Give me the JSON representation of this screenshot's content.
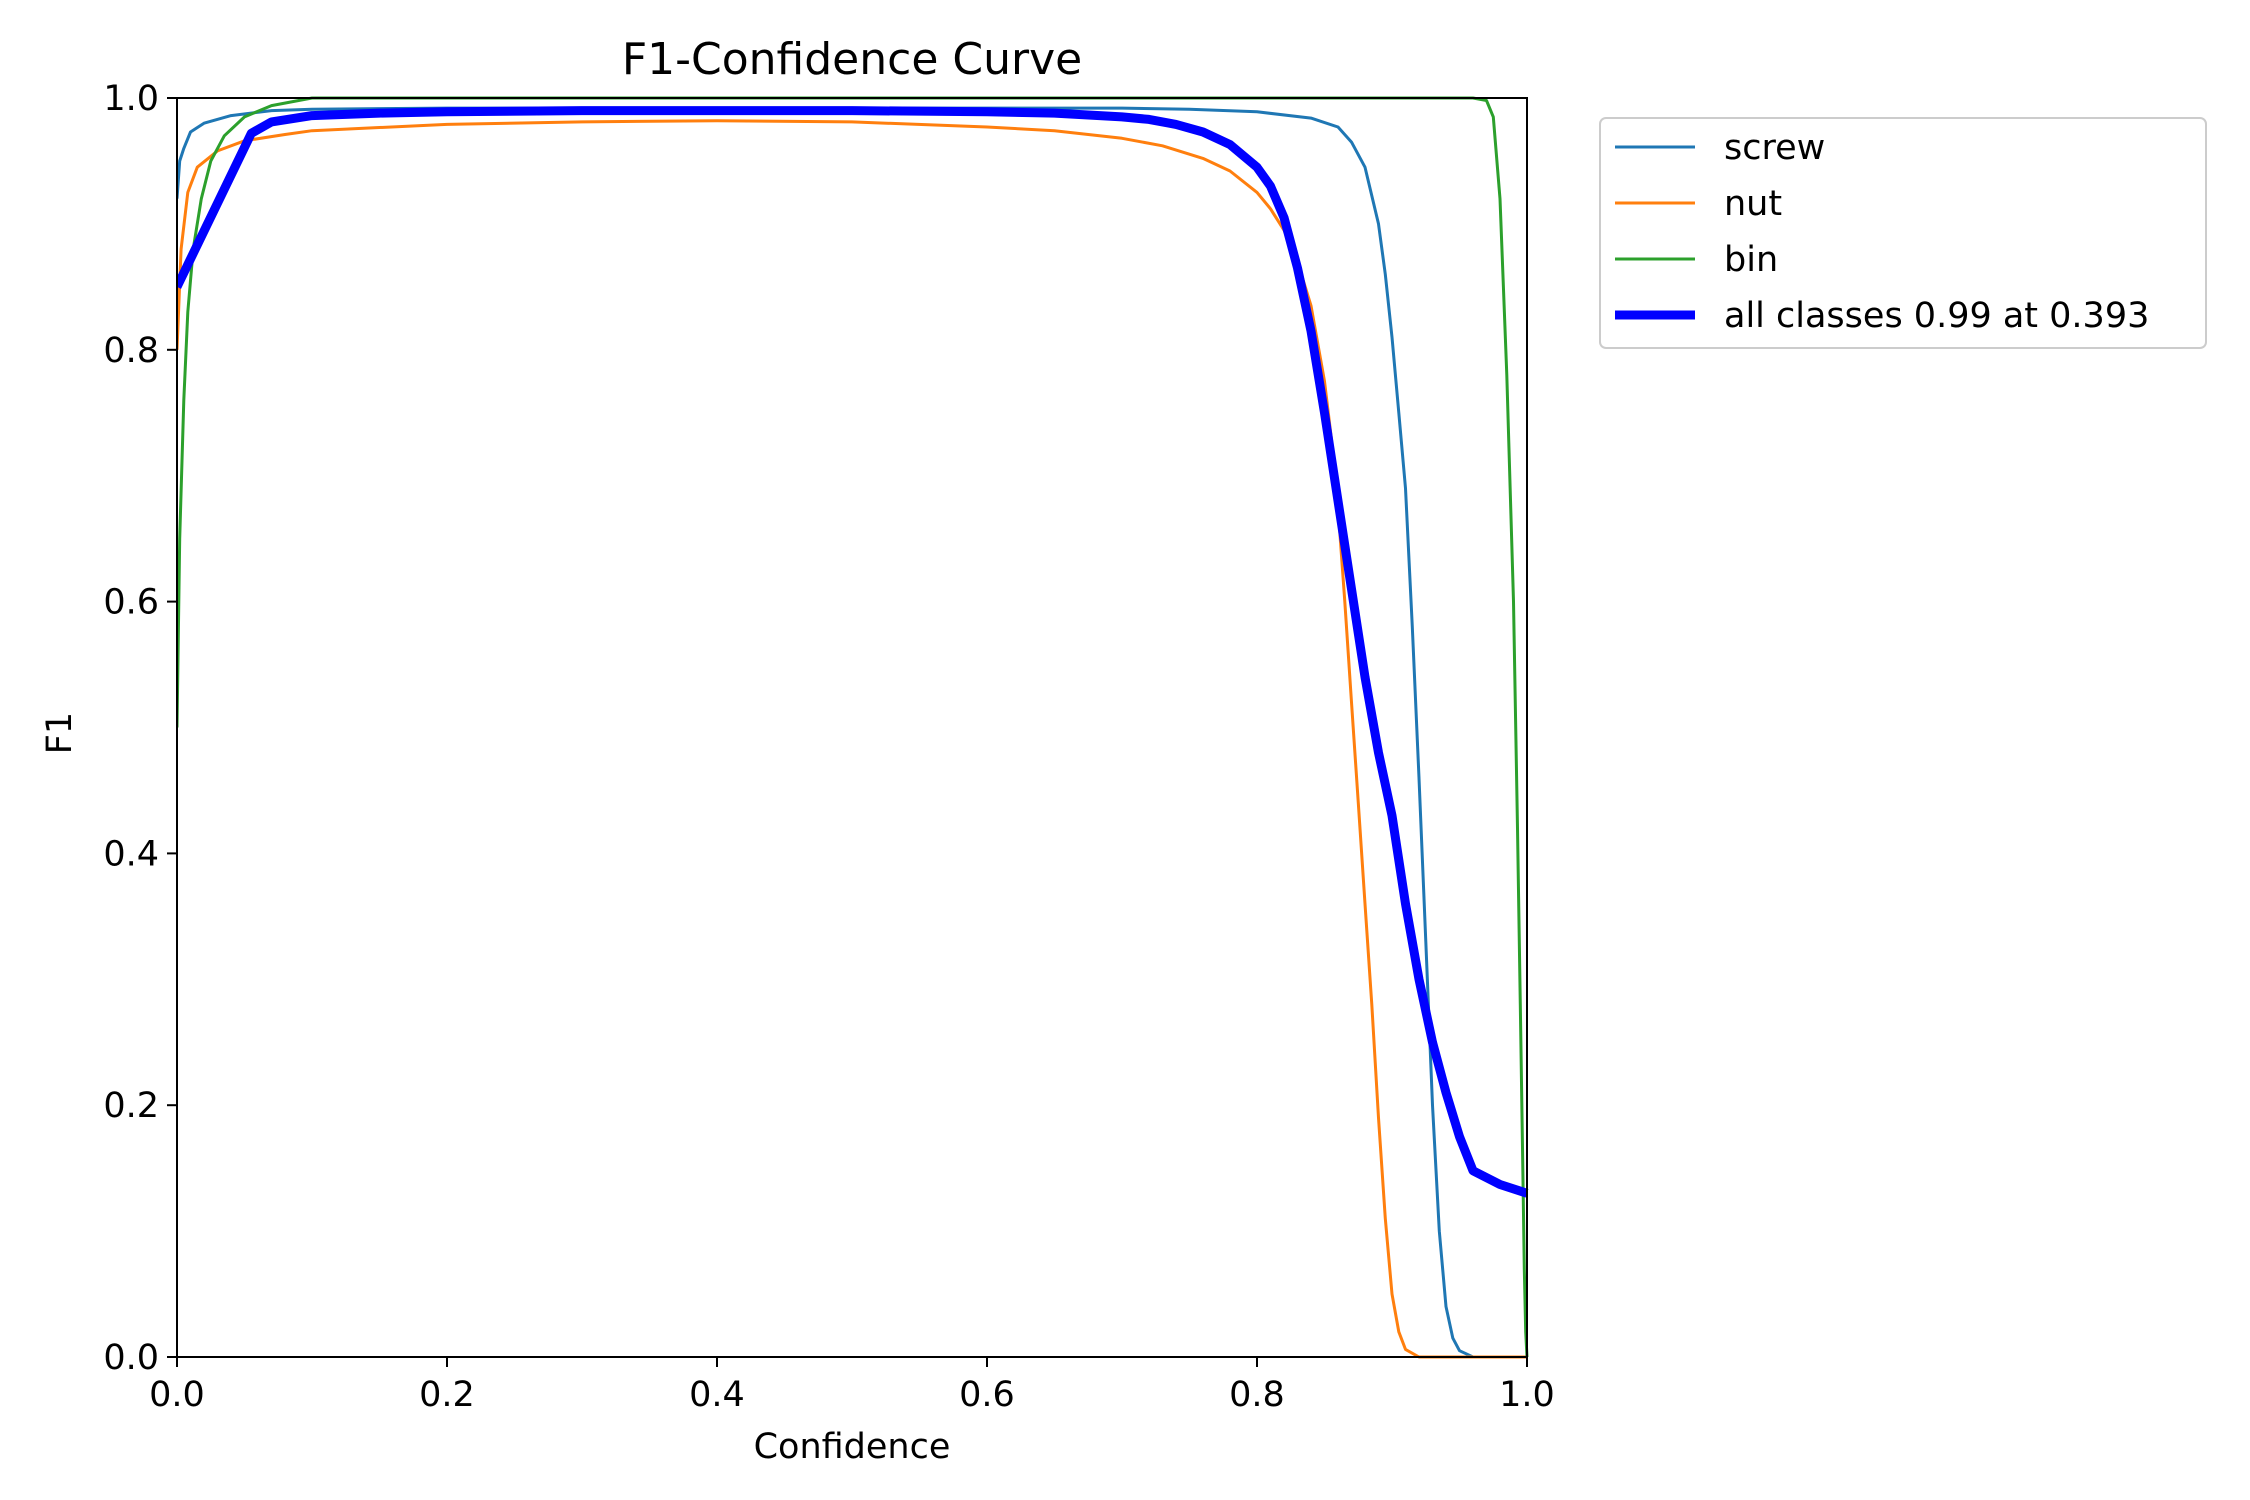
{
  "chart_data": {
    "type": "line",
    "title": "F1-Confidence Curve",
    "xlabel": "Confidence",
    "ylabel": "F1",
    "xlim": [
      0,
      1
    ],
    "ylim": [
      0,
      1
    ],
    "xticks": [
      "0.0",
      "0.2",
      "0.4",
      "0.6",
      "0.8",
      "1.0"
    ],
    "yticks": [
      "0.0",
      "0.2",
      "0.4",
      "0.6",
      "0.8",
      "1.0"
    ],
    "grid": false,
    "legend_position": "outside-top-right",
    "series": [
      {
        "name": "screw",
        "color": "#1f77b4",
        "points": [
          [
            0.0,
            0.92
          ],
          [
            0.002,
            0.95
          ],
          [
            0.005,
            0.96
          ],
          [
            0.01,
            0.973
          ],
          [
            0.02,
            0.98
          ],
          [
            0.04,
            0.986
          ],
          [
            0.07,
            0.99
          ],
          [
            0.1,
            0.991
          ],
          [
            0.2,
            0.992
          ],
          [
            0.3,
            0.992
          ],
          [
            0.4,
            0.992
          ],
          [
            0.5,
            0.992
          ],
          [
            0.6,
            0.992
          ],
          [
            0.7,
            0.992
          ],
          [
            0.75,
            0.991
          ],
          [
            0.8,
            0.989
          ],
          [
            0.84,
            0.984
          ],
          [
            0.86,
            0.977
          ],
          [
            0.87,
            0.965
          ],
          [
            0.88,
            0.945
          ],
          [
            0.89,
            0.9
          ],
          [
            0.895,
            0.86
          ],
          [
            0.9,
            0.81
          ],
          [
            0.905,
            0.75
          ],
          [
            0.91,
            0.69
          ],
          [
            0.915,
            0.58
          ],
          [
            0.92,
            0.46
          ],
          [
            0.925,
            0.33
          ],
          [
            0.93,
            0.2
          ],
          [
            0.935,
            0.1
          ],
          [
            0.94,
            0.04
          ],
          [
            0.945,
            0.015
          ],
          [
            0.95,
            0.005
          ],
          [
            0.96,
            0.0
          ],
          [
            1.0,
            0.0
          ]
        ]
      },
      {
        "name": "nut",
        "color": "#ff7f0e",
        "points": [
          [
            0.0,
            0.8
          ],
          [
            0.003,
            0.88
          ],
          [
            0.008,
            0.925
          ],
          [
            0.015,
            0.945
          ],
          [
            0.03,
            0.958
          ],
          [
            0.05,
            0.966
          ],
          [
            0.08,
            0.971
          ],
          [
            0.1,
            0.974
          ],
          [
            0.2,
            0.979
          ],
          [
            0.3,
            0.981
          ],
          [
            0.4,
            0.982
          ],
          [
            0.5,
            0.981
          ],
          [
            0.6,
            0.977
          ],
          [
            0.65,
            0.974
          ],
          [
            0.7,
            0.968
          ],
          [
            0.73,
            0.962
          ],
          [
            0.76,
            0.952
          ],
          [
            0.78,
            0.942
          ],
          [
            0.8,
            0.925
          ],
          [
            0.81,
            0.912
          ],
          [
            0.82,
            0.895
          ],
          [
            0.83,
            0.87
          ],
          [
            0.84,
            0.835
          ],
          [
            0.85,
            0.775
          ],
          [
            0.855,
            0.73
          ],
          [
            0.86,
            0.675
          ],
          [
            0.865,
            0.6
          ],
          [
            0.87,
            0.52
          ],
          [
            0.875,
            0.44
          ],
          [
            0.88,
            0.36
          ],
          [
            0.885,
            0.28
          ],
          [
            0.89,
            0.19
          ],
          [
            0.895,
            0.11
          ],
          [
            0.9,
            0.05
          ],
          [
            0.905,
            0.02
          ],
          [
            0.91,
            0.006
          ],
          [
            0.92,
            0.0
          ],
          [
            1.0,
            0.0
          ]
        ]
      },
      {
        "name": "bin",
        "color": "#2ca02c",
        "points": [
          [
            0.0,
            0.5
          ],
          [
            0.002,
            0.65
          ],
          [
            0.005,
            0.76
          ],
          [
            0.008,
            0.83
          ],
          [
            0.012,
            0.88
          ],
          [
            0.018,
            0.92
          ],
          [
            0.025,
            0.95
          ],
          [
            0.035,
            0.97
          ],
          [
            0.05,
            0.985
          ],
          [
            0.07,
            0.994
          ],
          [
            0.1,
            1.0
          ],
          [
            0.5,
            1.0
          ],
          [
            0.96,
            1.0
          ],
          [
            0.97,
            0.998
          ],
          [
            0.975,
            0.985
          ],
          [
            0.98,
            0.92
          ],
          [
            0.985,
            0.78
          ],
          [
            0.99,
            0.6
          ],
          [
            0.993,
            0.42
          ],
          [
            0.995,
            0.28
          ],
          [
            0.997,
            0.14
          ],
          [
            0.998,
            0.07
          ],
          [
            0.999,
            0.02
          ],
          [
            1.0,
            0.0
          ]
        ]
      },
      {
        "name": "all classes 0.99 at 0.393",
        "color": "#0000ff",
        "bold": true,
        "points": [
          [
            0.0,
            0.85
          ],
          [
            0.055,
            0.972
          ],
          [
            0.07,
            0.981
          ],
          [
            0.1,
            0.986
          ],
          [
            0.15,
            0.988
          ],
          [
            0.2,
            0.989
          ],
          [
            0.3,
            0.99
          ],
          [
            0.393,
            0.99
          ],
          [
            0.5,
            0.99
          ],
          [
            0.6,
            0.989
          ],
          [
            0.65,
            0.988
          ],
          [
            0.7,
            0.985
          ],
          [
            0.72,
            0.983
          ],
          [
            0.74,
            0.979
          ],
          [
            0.76,
            0.973
          ],
          [
            0.78,
            0.963
          ],
          [
            0.8,
            0.945
          ],
          [
            0.81,
            0.93
          ],
          [
            0.82,
            0.905
          ],
          [
            0.83,
            0.865
          ],
          [
            0.84,
            0.815
          ],
          [
            0.85,
            0.75
          ],
          [
            0.86,
            0.68
          ],
          [
            0.87,
            0.61
          ],
          [
            0.88,
            0.54
          ],
          [
            0.89,
            0.48
          ],
          [
            0.9,
            0.43
          ],
          [
            0.91,
            0.36
          ],
          [
            0.92,
            0.3
          ],
          [
            0.93,
            0.25
          ],
          [
            0.94,
            0.21
          ],
          [
            0.95,
            0.175
          ],
          [
            0.96,
            0.148
          ],
          [
            0.98,
            0.137
          ],
          [
            1.0,
            0.13
          ]
        ]
      }
    ]
  }
}
